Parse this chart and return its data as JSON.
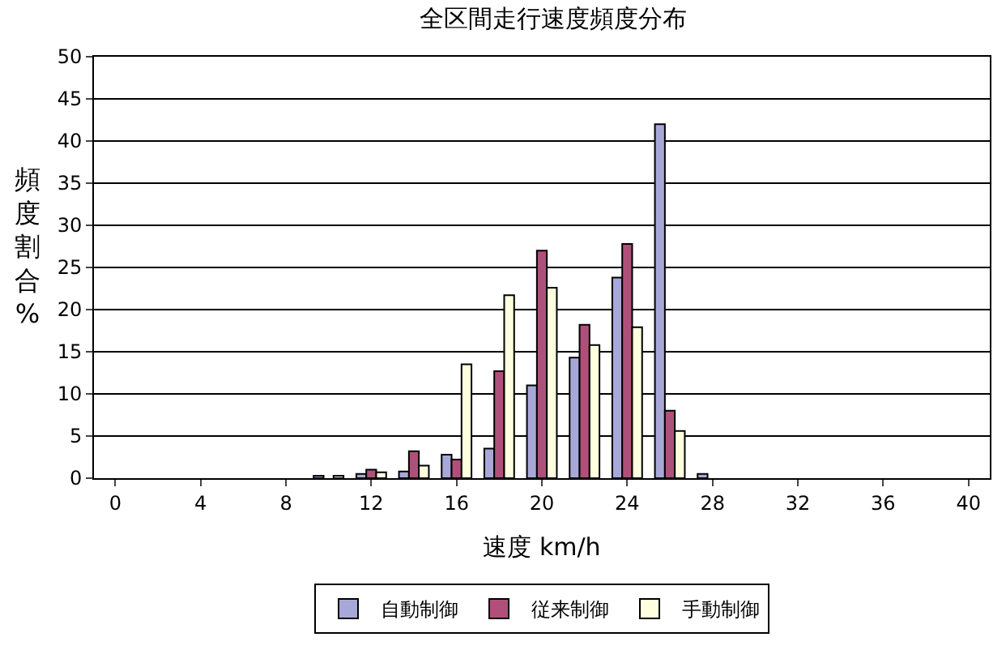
{
  "chart_data": {
    "type": "bar",
    "title": "全区間走行速度頻度分布",
    "xlabel": "速度 km/h",
    "ylabel": "頻度割合%",
    "categories": [
      "0",
      null,
      "4",
      null,
      "8",
      null,
      "12",
      null,
      "16",
      null,
      "20",
      null,
      "24",
      null,
      "28",
      null,
      "32",
      null,
      "36",
      null,
      "40"
    ],
    "series": [
      {
        "name": "自動制御",
        "color": "#a8a8d8",
        "values": [
          null,
          null,
          null,
          null,
          null,
          0.3,
          0.5,
          0.8,
          2.8,
          3.5,
          11,
          14.3,
          23.8,
          42,
          0.5,
          null,
          null,
          null,
          null,
          null,
          null
        ]
      },
      {
        "name": "従来制御",
        "color": "#b0507a",
        "values": [
          null,
          null,
          null,
          null,
          null,
          null,
          1.0,
          3.2,
          2.2,
          12.7,
          27,
          18.2,
          27.8,
          8,
          null,
          null,
          null,
          null,
          null,
          null,
          null
        ]
      },
      {
        "name": "手動制御",
        "color": "#ffffe0",
        "values": [
          null,
          null,
          null,
          null,
          null,
          0.3,
          0.7,
          1.5,
          13.5,
          21.7,
          22.6,
          15.8,
          17.9,
          5.6,
          null,
          null,
          null,
          null,
          null,
          null,
          null
        ]
      }
    ],
    "ylim": [
      0,
      50
    ],
    "yticks": [
      0,
      5,
      10,
      15,
      20,
      25,
      30,
      35,
      40,
      45,
      50
    ],
    "grid": "y",
    "legend": "bottom"
  }
}
